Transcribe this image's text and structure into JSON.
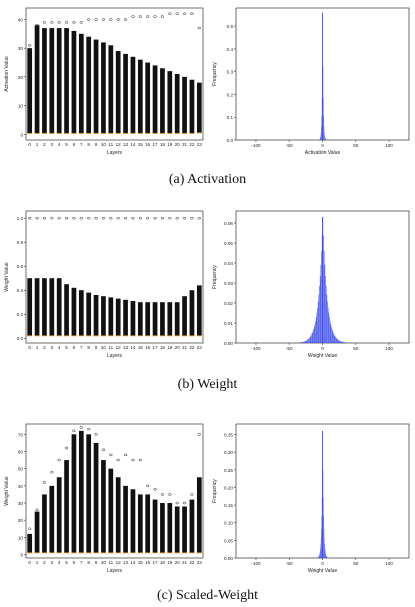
{
  "captions": [
    "(a)  Activation",
    "(b)  Weight",
    "(c)  Scaled-Weight"
  ],
  "chart_data": [
    {
      "type": "box",
      "panel": "a-left",
      "xlabel": "Layers",
      "ylabel": "Activation Value",
      "categories": [
        "0",
        "1",
        "2",
        "3",
        "4",
        "5",
        "6",
        "7",
        "8",
        "9",
        "10",
        "11",
        "12",
        "13",
        "14",
        "15",
        "16",
        "17",
        "18",
        "19",
        "20",
        "21",
        "22",
        "23"
      ],
      "box_top": [
        30,
        38,
        37,
        37,
        37,
        37,
        36,
        35,
        34,
        33,
        32,
        31,
        29,
        28,
        27,
        26,
        25,
        24,
        23,
        22,
        21,
        20,
        19,
        18
      ],
      "outlier_top": [
        31,
        38,
        39,
        39,
        39,
        39,
        39,
        39,
        40,
        40,
        40,
        40,
        40,
        40,
        41,
        41,
        41,
        41,
        41,
        42,
        42,
        42,
        42,
        37
      ],
      "median": [
        0.3,
        0.3,
        0.3,
        0.3,
        0.3,
        0.3,
        0.3,
        0.3,
        0.3,
        0.3,
        0.3,
        0.3,
        0.3,
        0.3,
        0.3,
        0.3,
        0.3,
        0.3,
        0.3,
        0.3,
        0.3,
        0.3,
        0.3,
        0.5
      ],
      "yticks": [
        "0",
        "10",
        "20",
        "30",
        "40"
      ],
      "ylim": [
        -2,
        44
      ]
    },
    {
      "type": "histogram",
      "panel": "a-right",
      "xlabel": "Activation Value",
      "ylabel": "Frequency",
      "xticks": [
        "-100",
        "-50",
        "0",
        "50",
        "100"
      ],
      "yticks": [
        "0.0",
        "0.1",
        "0.2",
        "0.3",
        "0.4",
        "0.5"
      ],
      "xlim": [
        -130,
        130
      ],
      "ylim": [
        0,
        0.58
      ],
      "peak": 0.56,
      "spread": 2,
      "color": "#3b4cf0"
    },
    {
      "type": "box",
      "panel": "b-left",
      "xlabel": "Layers",
      "ylabel": "Weight Value",
      "categories": [
        "0",
        "1",
        "2",
        "3",
        "4",
        "5",
        "6",
        "7",
        "8",
        "9",
        "10",
        "11",
        "12",
        "13",
        "14",
        "15",
        "16",
        "17",
        "18",
        "19",
        "20",
        "21",
        "22",
        "23"
      ],
      "box_top": [
        0.5,
        0.5,
        0.5,
        0.5,
        0.5,
        0.45,
        0.42,
        0.4,
        0.38,
        0.36,
        0.35,
        0.34,
        0.33,
        0.32,
        0.31,
        0.3,
        0.3,
        0.3,
        0.3,
        0.3,
        0.3,
        0.35,
        0.4,
        0.44
      ],
      "outlier_top": [
        1.0,
        1.0,
        1.0,
        1.0,
        1.0,
        1.0,
        1.0,
        1.0,
        1.0,
        1.0,
        1.0,
        1.0,
        1.0,
        1.0,
        1.0,
        1.0,
        1.0,
        1.0,
        1.0,
        1.0,
        1.0,
        1.0,
        1.0,
        1.0
      ],
      "median": [
        0.02,
        0.02,
        0.02,
        0.02,
        0.02,
        0.02,
        0.02,
        0.02,
        0.02,
        0.02,
        0.02,
        0.02,
        0.02,
        0.02,
        0.02,
        0.02,
        0.02,
        0.02,
        0.02,
        0.02,
        0.02,
        0.02,
        0.02,
        0.02
      ],
      "yticks": [
        "0.0",
        "0.2",
        "0.4",
        "0.6",
        "0.8",
        "1.0"
      ],
      "ylim": [
        -0.04,
        1.06
      ]
    },
    {
      "type": "histogram",
      "panel": "b-right",
      "xlabel": "Weight Value",
      "ylabel": "Frequency",
      "xticks": [
        "-100",
        "-50",
        "0",
        "50",
        "100"
      ],
      "yticks": [
        "0.00",
        "0.01",
        "0.02",
        "0.03",
        "0.04",
        "0.05",
        "0.06"
      ],
      "xlim": [
        -130,
        130
      ],
      "ylim": [
        0,
        0.066
      ],
      "peak": 0.063,
      "spread": 14,
      "color": "#3b4cf0"
    },
    {
      "type": "box",
      "panel": "c-left",
      "xlabel": "Layers",
      "ylabel": "Weight Value",
      "categories": [
        "0",
        "1",
        "2",
        "3",
        "4",
        "5",
        "6",
        "7",
        "8",
        "9",
        "10",
        "11",
        "12",
        "13",
        "14",
        "15",
        "16",
        "17",
        "18",
        "19",
        "20",
        "21",
        "22",
        "23"
      ],
      "box_top": [
        12,
        25,
        35,
        40,
        45,
        55,
        70,
        72,
        70,
        65,
        55,
        50,
        45,
        40,
        38,
        35,
        35,
        32,
        30,
        30,
        28,
        28,
        32,
        45
      ],
      "outlier_top": [
        15,
        26,
        42,
        48,
        55,
        62,
        72,
        74,
        73,
        70,
        61,
        58,
        55,
        58,
        55,
        55,
        40,
        38,
        35,
        35,
        30,
        30,
        35,
        70
      ],
      "median": [
        1,
        1,
        1,
        1,
        1,
        1,
        1,
        1,
        1,
        1,
        1,
        1,
        1,
        1,
        1,
        1,
        1,
        1,
        1,
        1,
        1,
        1,
        1,
        1
      ],
      "yticks": [
        "0",
        "10",
        "20",
        "30",
        "40",
        "50",
        "60",
        "70"
      ],
      "ylim": [
        -2,
        76
      ]
    },
    {
      "type": "histogram",
      "panel": "c-right",
      "xlabel": "Weight Value",
      "ylabel": "Frequency",
      "xticks": [
        "-100",
        "-50",
        "0",
        "50",
        "100"
      ],
      "yticks": [
        "0.00",
        "0.05",
        "0.10",
        "0.15",
        "0.20",
        "0.25",
        "0.30",
        "0.35"
      ],
      "xlim": [
        -130,
        130
      ],
      "ylim": [
        0,
        0.38
      ],
      "peak": 0.36,
      "spread": 3,
      "color": "#3b4cf0"
    }
  ]
}
